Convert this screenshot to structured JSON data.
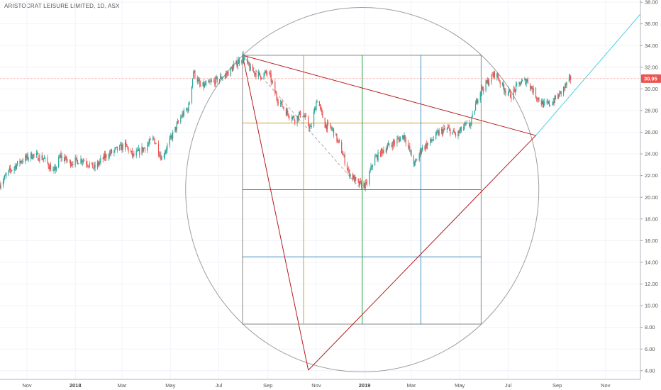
{
  "header": {
    "title": "ARISTOCRAT LEISURE LIMITED, 1D, ASX"
  },
  "chart_data": {
    "type": "candlestick",
    "title": "ARISTOCRAT LEISURE LIMITED, 1D, ASX",
    "ylim": [
      3.2,
      38.2
    ],
    "y_ticks": [
      "4.00",
      "6.00",
      "8.00",
      "10.00",
      "12.00",
      "14.00",
      "16.00",
      "18.00",
      "20.00",
      "22.00",
      "24.00",
      "26.00",
      "28.00",
      "30.00",
      "32.00",
      "34.00",
      "36.00",
      "38.00"
    ],
    "x_ticks": [
      {
        "label": "Nov",
        "date": "2017-11-01",
        "bold": false
      },
      {
        "label": "2018",
        "date": "2018-01-01",
        "bold": true
      },
      {
        "label": "Mar",
        "date": "2018-03-01",
        "bold": false
      },
      {
        "label": "May",
        "date": "2018-05-01",
        "bold": false
      },
      {
        "label": "Jul",
        "date": "2018-07-01",
        "bold": false
      },
      {
        "label": "Sep",
        "date": "2018-09-01",
        "bold": false
      },
      {
        "label": "Nov",
        "date": "2018-11-01",
        "bold": false
      },
      {
        "label": "2019",
        "date": "2019-01-01",
        "bold": true
      },
      {
        "label": "Mar",
        "date": "2019-03-01",
        "bold": false
      },
      {
        "label": "May",
        "date": "2019-05-01",
        "bold": false
      },
      {
        "label": "Jul",
        "date": "2019-07-01",
        "bold": false
      },
      {
        "label": "Sep",
        "date": "2019-09-01",
        "bold": false
      },
      {
        "label": "Nov",
        "date": "2019-11-01",
        "bold": false
      }
    ],
    "x_range": [
      "2017-09-28",
      "2019-12-15"
    ],
    "last_price": "30.95",
    "colors": {
      "up": "#26a69a",
      "down": "#ef5350",
      "last_price": "#ef5350"
    },
    "price_path": [
      [
        "2017-09-28",
        21.2
      ],
      [
        "2017-10-10",
        22.4
      ],
      [
        "2017-10-25",
        23.4
      ],
      [
        "2017-11-08",
        23.9
      ],
      [
        "2017-11-22",
        23.6
      ],
      [
        "2017-12-05",
        22.3
      ],
      [
        "2017-12-13",
        23.8
      ],
      [
        "2017-12-25",
        23.2
      ],
      [
        "2018-01-10",
        23.5
      ],
      [
        "2018-01-25",
        22.7
      ],
      [
        "2018-02-08",
        23.8
      ],
      [
        "2018-02-20",
        24.3
      ],
      [
        "2018-03-05",
        24.8
      ],
      [
        "2018-03-15",
        23.8
      ],
      [
        "2018-03-28",
        24.5
      ],
      [
        "2018-04-10",
        25.4
      ],
      [
        "2018-04-20",
        23.6
      ],
      [
        "2018-05-02",
        25.5
      ],
      [
        "2018-05-15",
        27.5
      ],
      [
        "2018-05-24",
        28.3
      ],
      [
        "2018-05-30",
        31.6
      ],
      [
        "2018-06-08",
        30.2
      ],
      [
        "2018-06-20",
        30.5
      ],
      [
        "2018-06-28",
        30.8
      ],
      [
        "2018-07-10",
        31.3
      ],
      [
        "2018-07-22",
        32.2
      ],
      [
        "2018-07-31",
        33.0
      ],
      [
        "2018-08-10",
        31.8
      ],
      [
        "2018-08-22",
        31.2
      ],
      [
        "2018-09-02",
        31.5
      ],
      [
        "2018-09-12",
        29.2
      ],
      [
        "2018-09-25",
        27.8
      ],
      [
        "2018-10-05",
        27.2
      ],
      [
        "2018-10-14",
        27.8
      ],
      [
        "2018-10-25",
        26.3
      ],
      [
        "2018-11-02",
        29.1
      ],
      [
        "2018-11-12",
        26.7
      ],
      [
        "2018-11-22",
        26.2
      ],
      [
        "2018-12-02",
        24.5
      ],
      [
        "2018-12-12",
        22.3
      ],
      [
        "2018-12-24",
        21.2
      ],
      [
        "2019-01-03",
        21.1
      ],
      [
        "2019-01-12",
        23.4
      ],
      [
        "2019-01-25",
        24.4
      ],
      [
        "2019-02-08",
        25.1
      ],
      [
        "2019-02-20",
        25.7
      ],
      [
        "2019-03-05",
        23.0
      ],
      [
        "2019-03-14",
        24.5
      ],
      [
        "2019-03-25",
        25.1
      ],
      [
        "2019-04-05",
        26.0
      ],
      [
        "2019-04-16",
        26.3
      ],
      [
        "2019-04-27",
        25.7
      ],
      [
        "2019-05-06",
        26.5
      ],
      [
        "2019-05-15",
        26.8
      ],
      [
        "2019-05-25",
        29.6
      ],
      [
        "2019-06-05",
        30.6
      ],
      [
        "2019-06-15",
        31.5
      ],
      [
        "2019-06-25",
        30.1
      ],
      [
        "2019-07-05",
        29.4
      ],
      [
        "2019-07-15",
        30.5
      ],
      [
        "2019-07-25",
        30.8
      ],
      [
        "2019-08-05",
        29.4
      ],
      [
        "2019-08-15",
        28.5
      ],
      [
        "2019-08-25",
        28.7
      ],
      [
        "2019-09-05",
        29.6
      ],
      [
        "2019-09-18",
        30.95
      ]
    ]
  }
}
